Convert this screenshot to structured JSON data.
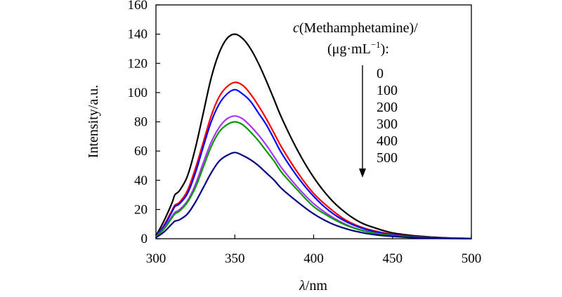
{
  "chart_data": {
    "type": "line",
    "title": "",
    "xlabel_symbol": "λ",
    "xlabel_unit": "/nm",
    "ylabel": "Intensity/a.u.",
    "xlim": [
      300,
      500
    ],
    "ylim": [
      0,
      160
    ],
    "xticks": [
      300,
      350,
      400,
      450,
      500
    ],
    "yticks": [
      0,
      20,
      40,
      60,
      80,
      100,
      120,
      140,
      160
    ],
    "xtick_labels": [
      "300",
      "350",
      "400",
      "450",
      "500"
    ],
    "ytick_labels": [
      "0",
      "20",
      "40",
      "60",
      "80",
      "100",
      "120",
      "140",
      "160"
    ],
    "grid": false,
    "legend": {
      "title_c": "c",
      "title_rest": "(Methamphetamine)/",
      "subtitle_pre": "(μg·mL",
      "subtitle_sup": "−1",
      "subtitle_post": "):",
      "placement": "top-right",
      "arrow": "down"
    },
    "series": [
      {
        "name": "0",
        "color": "#000000",
        "x": [
          300,
          305,
          310,
          312,
          315,
          320,
          325,
          330,
          335,
          340,
          345,
          350,
          355,
          360,
          365,
          370,
          375,
          380,
          390,
          400,
          410,
          420,
          430,
          440,
          450,
          460,
          470,
          480,
          490,
          500
        ],
        "values": [
          2,
          12,
          24,
          30,
          33,
          43,
          62,
          86,
          110,
          127,
          137,
          140,
          137,
          130,
          120,
          108,
          95,
          82,
          60,
          42,
          28,
          18,
          11,
          7,
          4,
          2.5,
          1.5,
          0.8,
          0.4,
          0.2
        ]
      },
      {
        "name": "100",
        "color": "#ff0000",
        "x": [
          300,
          305,
          310,
          312,
          315,
          320,
          325,
          330,
          335,
          340,
          345,
          350,
          355,
          360,
          365,
          370,
          375,
          380,
          390,
          400,
          410,
          420,
          430,
          440,
          450,
          460,
          470,
          480,
          490,
          500
        ],
        "values": [
          1.5,
          9,
          19,
          23,
          25,
          33,
          48,
          66,
          84,
          97,
          104,
          107,
          105,
          99,
          91,
          82,
          72,
          62,
          45,
          31,
          21,
          13,
          8,
          5,
          3,
          1.8,
          1,
          0.6,
          0.3,
          0.1
        ]
      },
      {
        "name": "200",
        "color": "#0000ff",
        "x": [
          300,
          305,
          310,
          312,
          315,
          320,
          325,
          330,
          335,
          340,
          345,
          350,
          355,
          360,
          365,
          370,
          375,
          380,
          390,
          400,
          410,
          420,
          430,
          440,
          450,
          460,
          470,
          480,
          490,
          500
        ],
        "values": [
          1.5,
          8.5,
          18,
          22,
          24,
          31,
          45,
          63,
          80,
          92,
          99,
          102,
          99,
          94,
          86,
          78,
          68,
          58,
          42,
          29,
          19,
          12,
          7.5,
          4.5,
          2.7,
          1.6,
          1,
          0.5,
          0.3,
          0.1
        ]
      },
      {
        "name": "300",
        "color": "#aa33ff",
        "x": [
          300,
          305,
          310,
          312,
          315,
          320,
          325,
          330,
          335,
          340,
          345,
          350,
          355,
          360,
          365,
          370,
          375,
          380,
          390,
          400,
          410,
          420,
          430,
          440,
          450,
          460,
          470,
          480,
          490,
          500
        ],
        "values": [
          1.2,
          7,
          15,
          18,
          20,
          26,
          37,
          52,
          66,
          76,
          82,
          84,
          82,
          77,
          71,
          64,
          56,
          48,
          35,
          24,
          16,
          10,
          6,
          3.7,
          2.2,
          1.3,
          0.8,
          0.4,
          0.2,
          0.1
        ]
      },
      {
        "name": "400",
        "color": "#009900",
        "x": [
          300,
          305,
          310,
          312,
          315,
          320,
          325,
          330,
          335,
          340,
          345,
          350,
          355,
          360,
          365,
          370,
          375,
          380,
          390,
          400,
          410,
          420,
          430,
          440,
          450,
          460,
          470,
          480,
          490,
          500
        ],
        "values": [
          1.2,
          6.5,
          14,
          17,
          19,
          25,
          35,
          49,
          63,
          73,
          78,
          80,
          78,
          73,
          67,
          60,
          53,
          45,
          33,
          22,
          15,
          9.5,
          5.8,
          3.5,
          2.1,
          1.2,
          0.7,
          0.4,
          0.2,
          0.1
        ]
      },
      {
        "name": "500",
        "color": "#000080",
        "x": [
          300,
          305,
          310,
          312,
          315,
          320,
          325,
          330,
          335,
          340,
          345,
          350,
          355,
          360,
          365,
          370,
          375,
          380,
          390,
          400,
          410,
          420,
          430,
          440,
          450,
          460,
          470,
          480,
          490,
          500
        ],
        "values": [
          0.8,
          4.5,
          10,
          12,
          13,
          17,
          25,
          35,
          45,
          53,
          57,
          59,
          57,
          54,
          50,
          45,
          40,
          34,
          25,
          17,
          11,
          7,
          4.3,
          2.6,
          1.6,
          0.9,
          0.5,
          0.3,
          0.15,
          0.05
        ]
      }
    ]
  }
}
